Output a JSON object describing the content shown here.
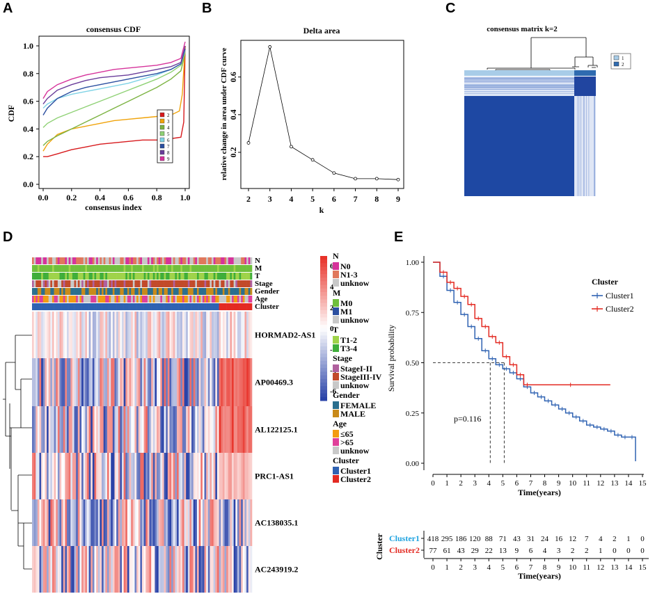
{
  "panels": {
    "a": "A",
    "b": "B",
    "c": "C",
    "d": "D",
    "e": "E"
  },
  "colors": {
    "heat_blue": "#2a43a8",
    "heat_red": "#e8332a",
    "heat_white": "#ffffff",
    "cdf": [
      "#d7191c",
      "#f0a30a",
      "#7cb342",
      "#8fd175",
      "#7fd3e6",
      "#2b4fa0",
      "#6a3d9a",
      "#d6339b"
    ],
    "cluster1": "#2f62b2",
    "cluster2": "#e32a22",
    "matrix_dark": "#1f4e9c"
  },
  "chart_data": [
    {
      "type": "line",
      "title": "consensus CDF",
      "xlabel": "consensus index",
      "ylabel": "CDF",
      "xlim": [
        0,
        1
      ],
      "ylim": [
        0,
        1.05
      ],
      "x_ticks": [
        "0.0",
        "0.2",
        "0.4",
        "0.6",
        "0.8",
        "1.0"
      ],
      "y_ticks": [
        "0.0",
        "0.2",
        "0.4",
        "0.6",
        "0.8",
        "1.0"
      ],
      "legend": {
        "position": "bottom-right",
        "entries": [
          "2",
          "3",
          "4",
          "5",
          "6",
          "7",
          "8",
          "9"
        ]
      },
      "series": [
        {
          "name": "2",
          "x": [
            0,
            0.03,
            0.1,
            0.2,
            0.3,
            0.4,
            0.5,
            0.6,
            0.7,
            0.8,
            0.9,
            0.97,
            0.99,
            1.0
          ],
          "y": [
            0.2,
            0.2,
            0.22,
            0.25,
            0.27,
            0.29,
            0.3,
            0.31,
            0.32,
            0.32,
            0.33,
            0.34,
            0.45,
            1.0
          ]
        },
        {
          "name": "3",
          "x": [
            0,
            0.03,
            0.1,
            0.2,
            0.3,
            0.4,
            0.5,
            0.6,
            0.7,
            0.8,
            0.9,
            0.96,
            0.98,
            1.0
          ],
          "y": [
            0.24,
            0.29,
            0.36,
            0.4,
            0.42,
            0.44,
            0.46,
            0.47,
            0.48,
            0.49,
            0.5,
            0.53,
            0.65,
            1.0
          ]
        },
        {
          "name": "4",
          "x": [
            0,
            0.03,
            0.1,
            0.2,
            0.3,
            0.4,
            0.5,
            0.6,
            0.7,
            0.8,
            0.9,
            0.97,
            1.0
          ],
          "y": [
            0.28,
            0.31,
            0.35,
            0.4,
            0.45,
            0.5,
            0.55,
            0.6,
            0.65,
            0.7,
            0.76,
            0.82,
            0.95
          ]
        },
        {
          "name": "5",
          "x": [
            0,
            0.03,
            0.1,
            0.2,
            0.3,
            0.4,
            0.5,
            0.6,
            0.7,
            0.8,
            0.9,
            0.97,
            1.0
          ],
          "y": [
            0.41,
            0.44,
            0.48,
            0.52,
            0.56,
            0.6,
            0.64,
            0.68,
            0.72,
            0.76,
            0.81,
            0.86,
            0.96
          ]
        },
        {
          "name": "6",
          "x": [
            0,
            0.03,
            0.1,
            0.2,
            0.3,
            0.4,
            0.5,
            0.6,
            0.7,
            0.8,
            0.9,
            0.97,
            1.0
          ],
          "y": [
            0.55,
            0.58,
            0.62,
            0.65,
            0.67,
            0.69,
            0.71,
            0.73,
            0.76,
            0.79,
            0.83,
            0.87,
            0.97
          ]
        },
        {
          "name": "7",
          "x": [
            0,
            0.03,
            0.1,
            0.2,
            0.3,
            0.4,
            0.5,
            0.6,
            0.7,
            0.8,
            0.9,
            0.97,
            1.0
          ],
          "y": [
            0.5,
            0.55,
            0.62,
            0.67,
            0.7,
            0.72,
            0.74,
            0.76,
            0.78,
            0.8,
            0.83,
            0.87,
            0.98
          ]
        },
        {
          "name": "8",
          "x": [
            0,
            0.03,
            0.1,
            0.2,
            0.3,
            0.4,
            0.5,
            0.6,
            0.7,
            0.8,
            0.9,
            0.97,
            1.0
          ],
          "y": [
            0.58,
            0.62,
            0.68,
            0.72,
            0.75,
            0.77,
            0.78,
            0.79,
            0.81,
            0.83,
            0.85,
            0.88,
            1.0
          ]
        },
        {
          "name": "9",
          "x": [
            0,
            0.03,
            0.1,
            0.2,
            0.3,
            0.4,
            0.5,
            0.6,
            0.7,
            0.8,
            0.9,
            0.97,
            1.0
          ],
          "y": [
            0.62,
            0.67,
            0.72,
            0.76,
            0.79,
            0.81,
            0.83,
            0.84,
            0.85,
            0.86,
            0.88,
            0.91,
            1.03
          ]
        }
      ]
    },
    {
      "type": "line",
      "title": "Delta area",
      "xlabel": "k",
      "ylabel": "relative change in area under CDF curve",
      "x": [
        2,
        3,
        4,
        5,
        6,
        7,
        8,
        9
      ],
      "values": [
        0.25,
        0.76,
        0.23,
        0.16,
        0.09,
        0.06,
        0.06,
        0.055
      ],
      "xlim": [
        2,
        9
      ],
      "ylim": [
        0.03,
        0.78
      ],
      "y_ticks": [
        {
          "v": 0.2,
          "label": "0.2"
        },
        {
          "v": 0.4,
          "label": "0.4"
        },
        {
          "v": 0.6,
          "label": "0.6"
        }
      ]
    },
    {
      "type": "line",
      "title": "",
      "xlabel": "Time(years)",
      "ylabel": "Survival probability",
      "xlim": [
        0,
        15
      ],
      "ylim": [
        0,
        1
      ],
      "x_ticks": [
        "0",
        "1",
        "2",
        "3",
        "4",
        "5",
        "6",
        "7",
        "8",
        "9",
        "10",
        "11",
        "12",
        "13",
        "14",
        "15"
      ],
      "y_ticks": [
        "0.00",
        "0.25",
        "0.50",
        "0.75",
        "1.00"
      ],
      "legend": {
        "title": "Cluster",
        "position": "top-right",
        "entries": [
          "Cluster1",
          "Cluster2"
        ]
      },
      "annotation": "p=0.116",
      "median": [
        {
          "name": "Cluster1",
          "t": 4.1
        },
        {
          "name": "Cluster2",
          "t": 5.1
        }
      ],
      "series": [
        {
          "name": "Cluster1",
          "t": [
            0,
            0.5,
            1,
            1.5,
            2,
            2.5,
            3,
            3.5,
            4,
            4.5,
            5,
            5.5,
            6,
            6.5,
            7,
            7.5,
            8,
            8.5,
            9,
            9.5,
            10,
            10.5,
            11,
            11.5,
            12,
            12.5,
            13,
            13.5,
            14,
            14.5
          ],
          "s": [
            1.0,
            0.93,
            0.86,
            0.8,
            0.74,
            0.68,
            0.62,
            0.56,
            0.52,
            0.49,
            0.47,
            0.45,
            0.42,
            0.38,
            0.35,
            0.33,
            0.31,
            0.29,
            0.27,
            0.25,
            0.23,
            0.21,
            0.19,
            0.18,
            0.17,
            0.16,
            0.14,
            0.13,
            0.13,
            0.01
          ]
        },
        {
          "name": "Cluster2",
          "t": [
            0,
            0.5,
            1,
            1.5,
            2,
            2.5,
            3,
            3.5,
            4,
            4.5,
            5,
            5.5,
            6,
            6.5,
            7,
            12.7
          ],
          "s": [
            1.0,
            0.95,
            0.9,
            0.87,
            0.83,
            0.79,
            0.72,
            0.68,
            0.63,
            0.6,
            0.53,
            0.49,
            0.44,
            0.39,
            0.39,
            0.39
          ]
        }
      ]
    }
  ],
  "panel_b": {
    "x_ticks": [
      "2",
      "3",
      "4",
      "5",
      "6",
      "7",
      "8",
      "9"
    ]
  },
  "panel_c": {
    "title": "consensus matrix k=2",
    "legend": [
      "1",
      "2"
    ]
  },
  "panel_d": {
    "annotation_rows": [
      "N",
      "M",
      "T",
      "Stage",
      "Gender",
      "Age",
      "Cluster"
    ],
    "genes": [
      "HORMAD2-AS1",
      "AP00469.3",
      "AL122125.1",
      "PRC1-AS1",
      "AC138035.1",
      "AC243919.2"
    ],
    "scale": {
      "ticks": [
        "6",
        "4",
        "2",
        "0",
        "-2",
        "-4",
        "-6"
      ]
    },
    "legend": [
      {
        "title": "N",
        "items": [
          {
            "label": "N0",
            "color": "#d6339b"
          },
          {
            "label": "N1-3",
            "color": "#e0785c"
          },
          {
            "label": "unknow",
            "color": "#c8c8c8"
          }
        ]
      },
      {
        "title": "M",
        "items": [
          {
            "label": "M0",
            "color": "#6fbf3c"
          },
          {
            "label": "M1",
            "color": "#2b4fa0"
          },
          {
            "label": "unknow",
            "color": "#c8c8c8"
          }
        ]
      },
      {
        "title": "T",
        "items": [
          {
            "label": "T1-2",
            "color": "#9fd34a"
          },
          {
            "label": "T3-4",
            "color": "#3fae3a"
          }
        ]
      },
      {
        "title": "Stage",
        "items": [
          {
            "label": "StageI-II",
            "color": "#b0609e"
          },
          {
            "label": "StageIII-IV",
            "color": "#c24a2a"
          },
          {
            "label": "unknow",
            "color": "#c8c8c8"
          }
        ]
      },
      {
        "title": "Gender",
        "items": [
          {
            "label": "FEMALE",
            "color": "#2b6f8e"
          },
          {
            "label": "MALE",
            "color": "#c88a1a"
          }
        ]
      },
      {
        "title": "Age",
        "items": [
          {
            "label": "≤65",
            "color": "#f39c12"
          },
          {
            "label": ">65",
            "color": "#e0409a"
          },
          {
            "label": "unknow",
            "color": "#c8c8c8"
          }
        ]
      },
      {
        "title": "Cluster",
        "items": [
          {
            "label": "Cluster1",
            "color": "#2f62b2"
          },
          {
            "label": "Cluster2",
            "color": "#e32a22"
          }
        ]
      }
    ]
  },
  "risk_table": {
    "ylabel": "Cluster",
    "xlabel": "Time(years)",
    "x_ticks": [
      "0",
      "1",
      "2",
      "3",
      "4",
      "5",
      "6",
      "7",
      "8",
      "9",
      "10",
      "11",
      "12",
      "13",
      "14",
      "15"
    ],
    "rows": [
      {
        "name": "Cluster1",
        "color": "#1fa3e0",
        "values": [
          "418",
          "295",
          "186",
          "120",
          "88",
          "71",
          "43",
          "31",
          "24",
          "16",
          "12",
          "7",
          "4",
          "2",
          "1",
          "0"
        ]
      },
      {
        "name": "Cluster2",
        "color": "#e32a22",
        "values": [
          "77",
          "61",
          "43",
          "29",
          "22",
          "13",
          "9",
          "6",
          "4",
          "3",
          "2",
          "2",
          "1",
          "0",
          "0",
          "0"
        ]
      }
    ]
  }
}
